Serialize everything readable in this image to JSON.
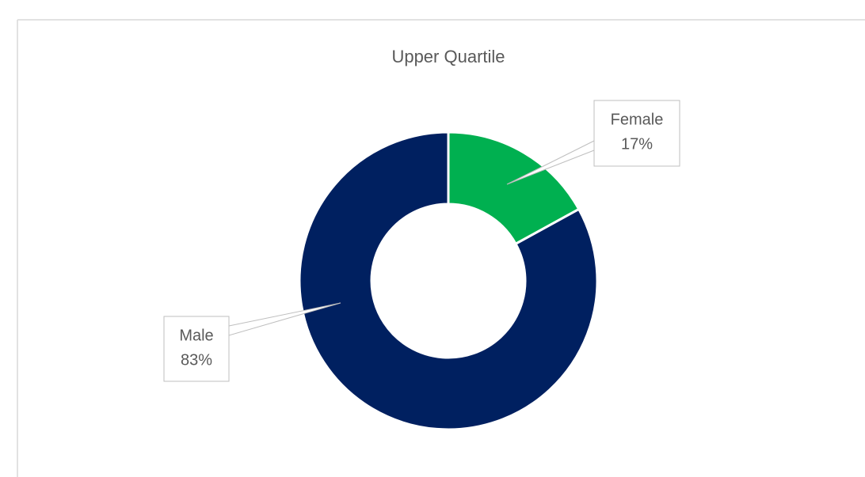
{
  "chart_data": {
    "type": "donut",
    "title": "Upper Quartile",
    "categories": [
      "Female",
      "Male"
    ],
    "values": [
      17,
      83
    ],
    "value_labels": [
      "17%",
      "83%"
    ],
    "colors": [
      "#00b050",
      "#002060"
    ]
  }
}
